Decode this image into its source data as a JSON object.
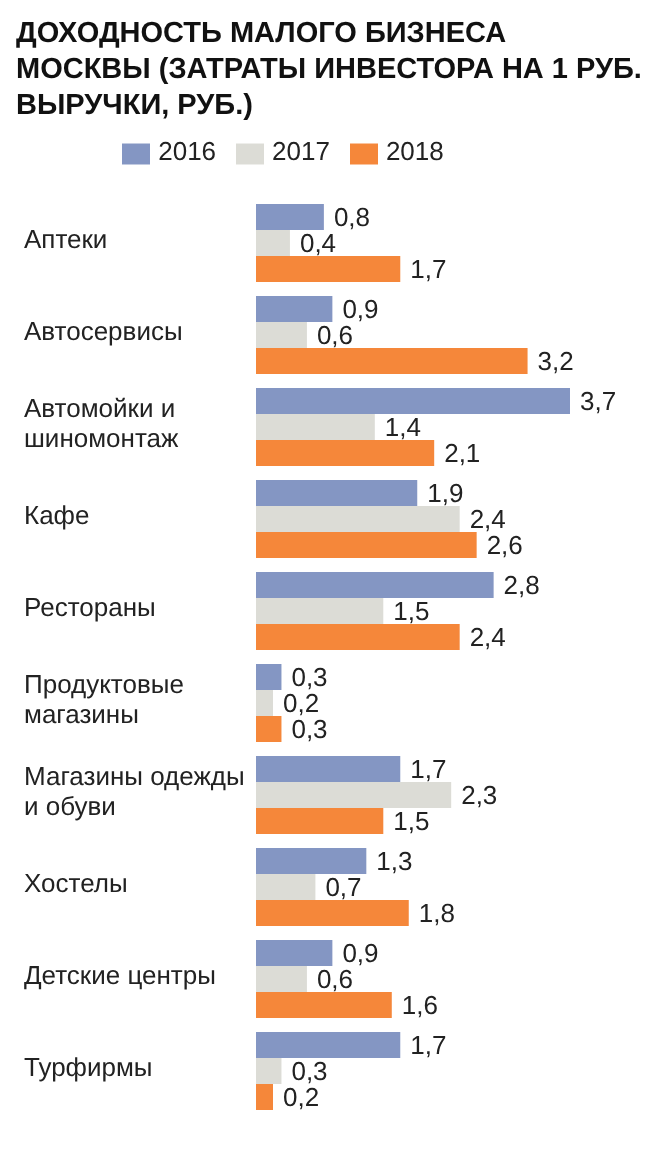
{
  "chart_data": {
    "type": "bar",
    "orientation": "horizontal",
    "title": "ДОХОДНОСТЬ МАЛОГО БИЗНЕСА МОСКВЫ (ЗАТРАТЫ ИНВЕСТОРА НА 1 РУБ. ВЫРУЧКИ, РУБ.)",
    "categories": [
      "Аптеки",
      "Автосервисы",
      "Автомойки и шиномонтаж",
      "Кафе",
      "Рестораны",
      "Продуктовые магазины",
      "Магазины одежды и обуви",
      "Хостелы",
      "Детские центры",
      "Турфирмы"
    ],
    "series": [
      {
        "name": "2016",
        "color": "#8496c3",
        "values": [
          0.8,
          0.9,
          3.7,
          1.9,
          2.8,
          0.3,
          1.7,
          1.3,
          0.9,
          1.7
        ],
        "value_labels": [
          "0,8",
          "0,9",
          "3,7",
          "1,9",
          "2,8",
          "0,3",
          "1,7",
          "1,3",
          "0,9",
          "1,7"
        ]
      },
      {
        "name": "2017",
        "color": "#dcdcd6",
        "values": [
          0.4,
          0.6,
          1.4,
          2.4,
          1.5,
          0.2,
          2.3,
          0.7,
          0.6,
          0.3
        ],
        "value_labels": [
          "0,4",
          "0,6",
          "1,4",
          "2,4",
          "1,5",
          "0,2",
          "2,3",
          "0,7",
          "0,6",
          "0,3"
        ]
      },
      {
        "name": "2018",
        "color": "#f5873a",
        "values": [
          1.7,
          3.2,
          2.1,
          2.6,
          2.4,
          0.3,
          1.5,
          1.8,
          1.6,
          0.2
        ],
        "value_labels": [
          "1,7",
          "3,2",
          "2,1",
          "2,6",
          "2,4",
          "0,3",
          "1,5",
          "1,8",
          "1,6",
          "0,2"
        ]
      }
    ],
    "legend": "top"
  }
}
